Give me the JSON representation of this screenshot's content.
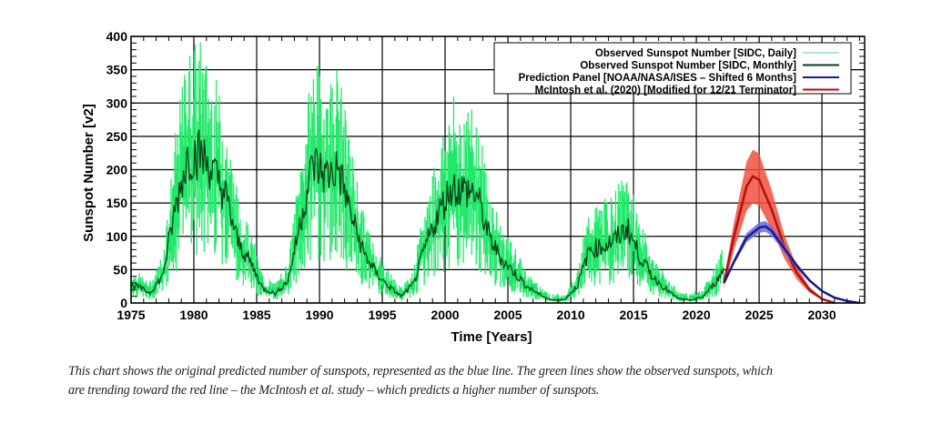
{
  "chart_data": {
    "type": "line",
    "title": "",
    "xlabel": "Time [Years]",
    "ylabel": "Sunspot Number [v2]",
    "xlim": [
      1975,
      2033
    ],
    "ylim": [
      0,
      400
    ],
    "grid": true,
    "xticks": [
      "1975",
      "1980",
      "1985",
      "1990",
      "1995",
      "2000",
      "2005",
      "2010",
      "2015",
      "2020",
      "2025",
      "2030"
    ],
    "yticks": [
      "0",
      "50",
      "100",
      "150",
      "200",
      "250",
      "300",
      "350",
      "400"
    ],
    "legend_position": "top-right",
    "series": [
      {
        "name": "Observed Sunspot Number [SIDC, Daily]",
        "color": "#22e86a",
        "note_values": "daily scatter around the monthly values, peaks up to ~400"
      },
      {
        "name": "Observed Sunspot Number [SIDC, Monthly]",
        "color": "#0a3a12",
        "x": [
          1975,
          1976,
          1977,
          1978,
          1979,
          1980,
          1981,
          1982,
          1983,
          1984,
          1985,
          1986,
          1987,
          1988,
          1989,
          1990,
          1991,
          1992,
          1993,
          1994,
          1995,
          1996,
          1997,
          1998,
          1999,
          2000,
          2001,
          2002,
          2003,
          2004,
          2005,
          2006,
          2007,
          2008,
          2009,
          2010,
          2011,
          2012,
          2013,
          2014,
          2015,
          2016,
          2017,
          2018,
          2019,
          2020,
          2021,
          2022.2
        ],
        "values": [
          25,
          15,
          40,
          140,
          220,
          225,
          198,
          162,
          91,
          61,
          21,
          14,
          34,
          124,
          211,
          191,
          203,
          133,
          76,
          45,
          25,
          10,
          29,
          88,
          136,
          174,
          170,
          164,
          99,
          65,
          46,
          25,
          13,
          4,
          5,
          25,
          80,
          85,
          94,
          113,
          70,
          40,
          22,
          7,
          4,
          9,
          30,
          65
        ]
      },
      {
        "name": "Prediction Panel [NOAA/NASA/ISES – Shifted 6 Months]",
        "color": "#1a1a8c",
        "x": [
          2022.2,
          2023,
          2024,
          2025,
          2025.5,
          2026,
          2027,
          2028,
          2029,
          2030,
          2031,
          2032,
          2033
        ],
        "values": [
          30,
          62,
          98,
          113,
          115,
          108,
          82,
          56,
          34,
          18,
          8,
          3,
          0
        ],
        "uncertainty": 8
      },
      {
        "name": "McIntosh et al. (2020) [Modified for 12/21 Terminator]",
        "color": "#b01010",
        "x": [
          2022.2,
          2023,
          2024,
          2024.5,
          2025,
          2026,
          2027,
          2028,
          2029,
          2030,
          2031
        ],
        "values": [
          30,
          100,
          175,
          190,
          185,
          140,
          85,
          45,
          20,
          6,
          0
        ],
        "uncertainty": 40
      }
    ]
  },
  "caption": {
    "line1": "This chart shows the original predicted number of sunspots, represented as the blue line. The green lines show the observed sunspots, which",
    "line2": "are trending toward the red line – the McIntosh et al. study – which predicts a higher number of sunspots."
  }
}
